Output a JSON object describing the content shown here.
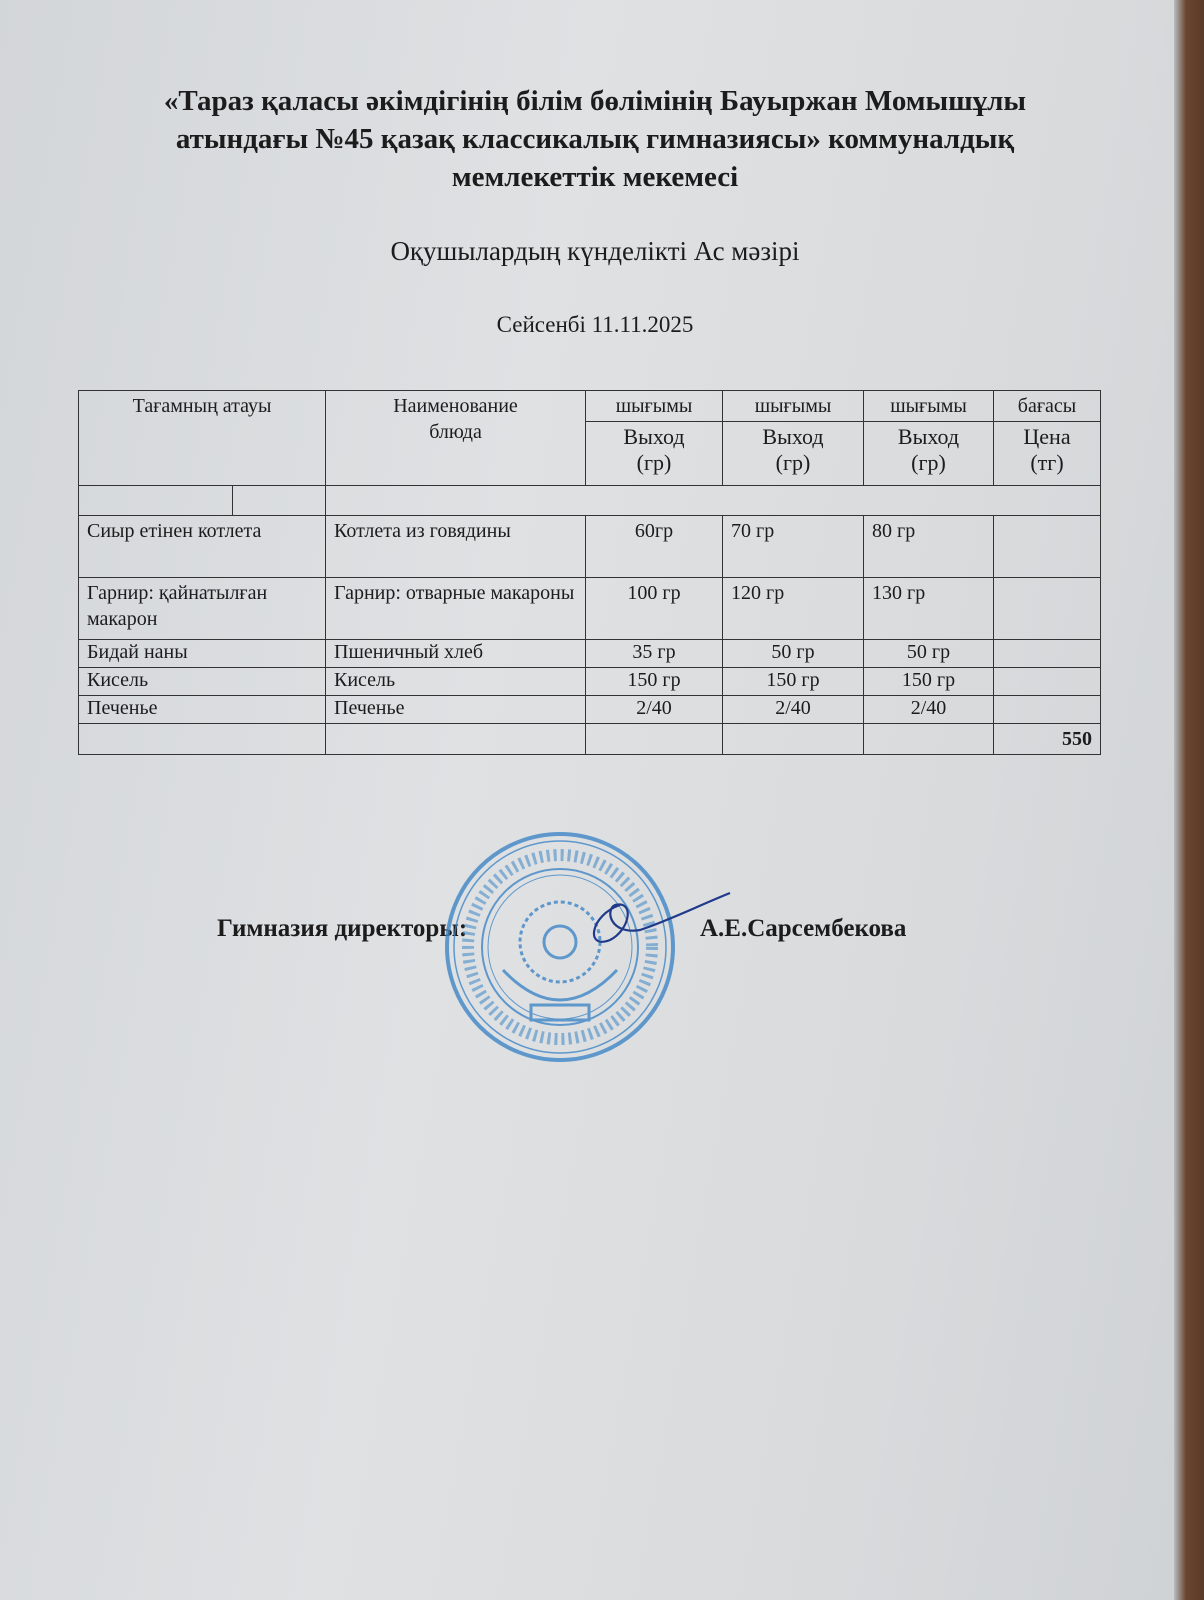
{
  "header": {
    "institution": "«Тараз қаласы әкімдігінің білім бөлімінің Бауыржан Момышұлы атындағы №45 қазақ классикалық гимназиясы» коммуналдық мемлекеттік мекемесі",
    "title": "Оқушылардың күнделікті Ас мәзірі",
    "date": "Сейсенбі 11.11.2025"
  },
  "table": {
    "headers": {
      "name_kz": "Тағамның атауы",
      "name_ru": "Наименование блюда",
      "yield_kz": "шығымы",
      "yield_ru": "Выход (гр)",
      "price_kz": "бағасы",
      "price_ru": "Цена (тг)"
    },
    "rows": [
      {
        "kz": "Сиыр етінен котлета",
        "ru": "Котлета из говядины",
        "y1": "60гр",
        "y2": "70 гр",
        "y3": "80 гр",
        "price": ""
      },
      {
        "kz": "Гарнир: қайнатылған макарон",
        "ru": "Гарнир: отварные макароны",
        "y1": "100 гр",
        "y2": "120 гр",
        "y3": "130 гр",
        "price": ""
      },
      {
        "kz": "Бидай наны",
        "ru": "Пшеничный хлеб",
        "y1": "35 гр",
        "y2": "50 гр",
        "y3": "50 гр",
        "price": ""
      },
      {
        "kz": "Кисель",
        "ru": "Кисель",
        "y1": "150 гр",
        "y2": "150 гр",
        "y3": "150 гр",
        "price": ""
      },
      {
        "kz": "Печенье",
        "ru": "Печенье",
        "y1": "2/40",
        "y2": "2/40",
        "y3": "2/40",
        "price": ""
      }
    ],
    "total": "550"
  },
  "signature": {
    "role": "Гимназия директоры:",
    "name": "А.Е.Сарсембекова"
  },
  "stamp": {
    "color": "#3f86c6",
    "text": "Тараз қаласы әкімдігінің білім бөлімі ... классикалық гимназиясы"
  }
}
